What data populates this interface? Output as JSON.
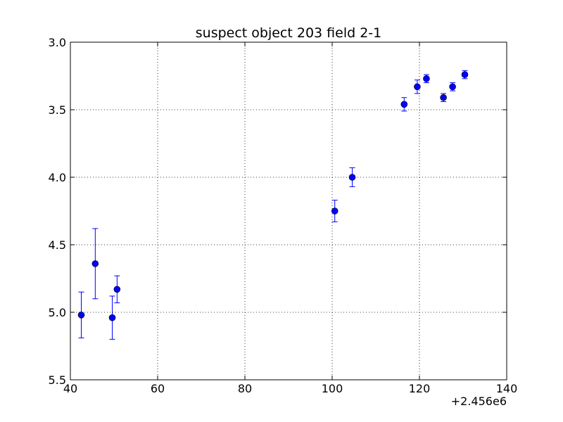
{
  "chart_data": {
    "type": "scatter",
    "title": "suspect object 203 field 2-1",
    "xlabel": "",
    "ylabel": "",
    "x_offset_label": "+2.456e6",
    "xlim": [
      40,
      140
    ],
    "ylim": [
      3.0,
      5.5
    ],
    "y_inverted": true,
    "grid": true,
    "x_ticks": [
      "40",
      "60",
      "80",
      "100",
      "120",
      "140"
    ],
    "y_ticks": [
      "3.0",
      "3.5",
      "4.0",
      "4.5",
      "5.0",
      "5.5"
    ],
    "marker_color": "#0000ff",
    "errorbar_color": "#0000ff",
    "points": [
      {
        "x": 42.5,
        "y": 5.02,
        "err": 0.17
      },
      {
        "x": 45.7,
        "y": 4.64,
        "err": 0.26
      },
      {
        "x": 49.6,
        "y": 5.04,
        "err": 0.16
      },
      {
        "x": 50.7,
        "y": 4.83,
        "err": 0.1
      },
      {
        "x": 100.6,
        "y": 4.25,
        "err": 0.08
      },
      {
        "x": 104.6,
        "y": 4.0,
        "err": 0.07
      },
      {
        "x": 116.5,
        "y": 3.46,
        "err": 0.05
      },
      {
        "x": 119.5,
        "y": 3.33,
        "err": 0.05
      },
      {
        "x": 121.6,
        "y": 3.27,
        "err": 0.03
      },
      {
        "x": 125.5,
        "y": 3.41,
        "err": 0.03
      },
      {
        "x": 127.6,
        "y": 3.33,
        "err": 0.03
      },
      {
        "x": 130.4,
        "y": 3.24,
        "err": 0.03
      }
    ]
  }
}
